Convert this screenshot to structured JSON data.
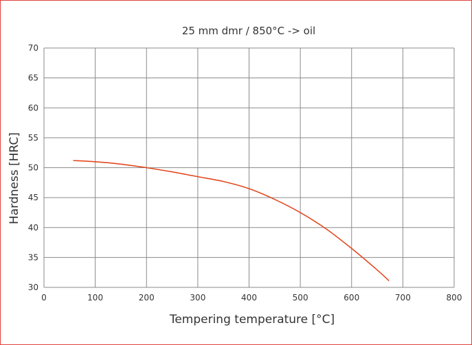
{
  "chart_data": {
    "type": "line",
    "title": "25 mm dmr / 850°C -> oil",
    "xlabel": "Tempering temperature [°C]",
    "ylabel": "Hardness [HRC]",
    "xlim": [
      0,
      800
    ],
    "ylim": [
      30,
      70
    ],
    "xticks": [
      0,
      100,
      200,
      300,
      400,
      500,
      600,
      700,
      800
    ],
    "yticks": [
      30,
      35,
      40,
      45,
      50,
      55,
      60,
      65,
      70
    ],
    "grid": true,
    "legend": "none",
    "series": [
      {
        "color": "#e2481f",
        "x": [
          57,
          100,
          150,
          200,
          250,
          300,
          350,
          400,
          450,
          500,
          550,
          600,
          650,
          673
        ],
        "y": [
          51.2,
          51.0,
          50.6,
          50.0,
          49.3,
          48.5,
          47.7,
          46.5,
          44.7,
          42.5,
          39.8,
          36.5,
          32.9,
          31.1
        ]
      }
    ]
  }
}
